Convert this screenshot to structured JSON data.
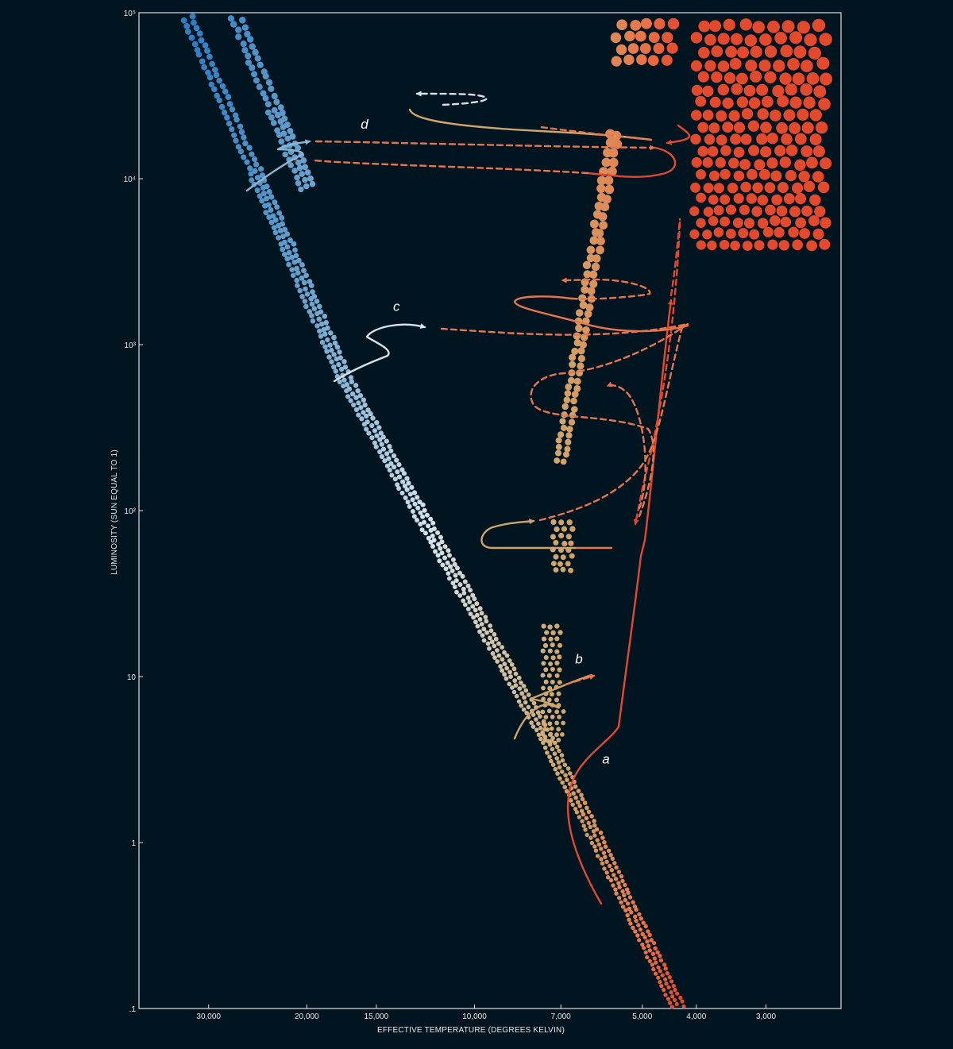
{
  "chart_data": {
    "type": "scatter",
    "title": "",
    "xlabel": "EFFECTIVE TEMPERATURE (DEGREES KELVIN)",
    "ylabel": "LUMINOSITY (SUN EQUAL TO 1)",
    "x_scale": "log",
    "x_reversed": true,
    "xlim": [
      40000,
      2200
    ],
    "y_scale": "log",
    "ylim": [
      0.1,
      100000
    ],
    "grid": false,
    "x_ticks": [
      {
        "value": 30000,
        "label": "30,000"
      },
      {
        "value": 20000,
        "label": "20,000"
      },
      {
        "value": 15000,
        "label": "15,000"
      },
      {
        "value": 10000,
        "label": "10,000"
      },
      {
        "value": 7000,
        "label": "7,000"
      },
      {
        "value": 5000,
        "label": "5,000"
      },
      {
        "value": 4000,
        "label": "4,000"
      },
      {
        "value": 3000,
        "label": "3,000"
      }
    ],
    "y_ticks": [
      {
        "value": 0.1,
        "label": ".1"
      },
      {
        "value": 1,
        "label": "1"
      },
      {
        "value": 10,
        "label": "10"
      },
      {
        "value": 100,
        "label": "10²"
      },
      {
        "value": 1000,
        "label": "10³"
      },
      {
        "value": 10000,
        "label": "10⁴"
      },
      {
        "value": 100000,
        "label": "10⁵"
      }
    ],
    "regions": [
      {
        "id": "main-sequence",
        "shape": "band",
        "spine": [
          [
            4300,
            0.1
          ],
          [
            6000,
            1
          ],
          [
            7500,
            4.5
          ],
          [
            17000,
            600
          ],
          [
            33000,
            100000
          ]
        ],
        "half_width_dex": 0.05
      },
      {
        "id": "supergiant-band",
        "shape": "band",
        "spine": [
          [
            20000,
            9000
          ],
          [
            27000,
            100000
          ]
        ],
        "half_width_dex": 0.055
      },
      {
        "id": "cepheid-strip",
        "shape": "band",
        "spine": [
          [
            7000,
            200
          ],
          [
            5600,
            20000
          ]
        ],
        "half_width_dex": 0.045
      },
      {
        "id": "red-giant-region",
        "shape": "box",
        "t_range": [
          4100,
          2300
        ],
        "l_range": [
          4000,
          100000
        ]
      },
      {
        "id": "red-giant-upper",
        "shape": "box",
        "t_range": [
          5700,
          4300
        ],
        "l_range": [
          50000,
          100000
        ]
      },
      {
        "id": "clump",
        "shape": "box",
        "t_range": [
          7300,
          6600
        ],
        "l_range": [
          42,
          85
        ]
      },
      {
        "id": "subgiant-branch",
        "shape": "box",
        "t_range": [
          7600,
          6900
        ],
        "l_range": [
          4,
          20
        ]
      }
    ],
    "colors": {
      "blue": "#2f7ec4",
      "white": "#d6e3ec",
      "yellow": "#d1a56a",
      "orange": "#e9764a",
      "red": "#e3492d",
      "background": "#011520",
      "frame": "#e0e0e0"
    },
    "tracks": [
      {
        "label": "a",
        "label_at": [
          5900,
          3
        ]
      },
      {
        "label": "b",
        "label_at": [
          6600,
          12
        ]
      },
      {
        "label": "c",
        "label_at": [
          14000,
          1600
        ]
      },
      {
        "label": "d",
        "label_at": [
          16000,
          20000
        ]
      }
    ]
  }
}
